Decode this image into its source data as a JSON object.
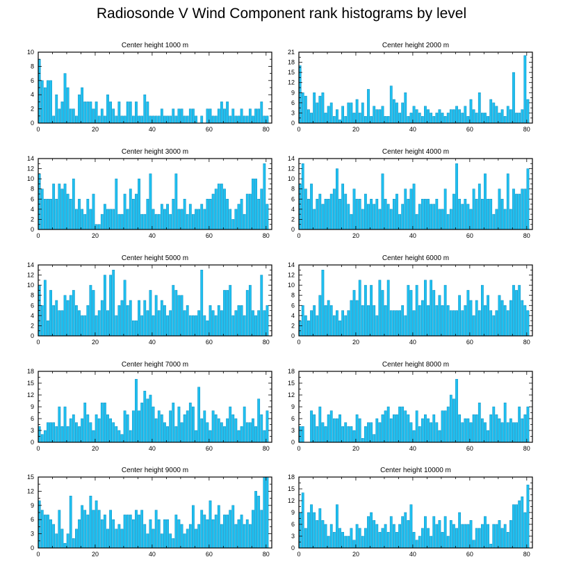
{
  "title": "Radiosonde V Wind Component rank histograms by level",
  "colors": {
    "bar_fill": "#1fc0f0",
    "bar_edge": "#0a8cc0",
    "axis": "#000000"
  },
  "chart_data": [
    {
      "type": "bar",
      "title": "Center height 1000 m",
      "xlim": [
        0,
        82
      ],
      "ylim": [
        0,
        10
      ],
      "xticks": [
        0,
        20,
        40,
        60,
        80
      ],
      "yticks": [
        0,
        2,
        4,
        6,
        8,
        10
      ],
      "values": [
        9,
        6,
        5,
        6,
        6,
        1,
        4,
        2,
        3,
        7,
        5,
        2,
        2,
        1,
        4,
        5,
        3,
        3,
        3,
        2,
        3,
        1,
        2,
        1,
        4,
        3,
        2,
        1,
        3,
        1,
        1,
        3,
        3,
        1,
        3,
        1,
        1,
        4,
        3,
        1,
        1,
        1,
        1,
        2,
        1,
        1,
        1,
        2,
        1,
        2,
        2,
        1,
        1,
        2,
        2,
        1,
        0,
        1,
        0,
        2,
        2,
        1,
        1,
        2,
        3,
        2,
        3,
        1,
        2,
        1,
        1,
        2,
        1,
        1,
        2,
        1,
        2,
        2,
        3,
        1,
        1
      ]
    },
    {
      "type": "bar",
      "title": "Center height 2000 m",
      "xlim": [
        0,
        82
      ],
      "ylim": [
        0,
        21
      ],
      "xticks": [
        0,
        20,
        40,
        60,
        80
      ],
      "yticks": [
        0,
        3,
        6,
        9,
        12,
        15,
        18,
        21
      ],
      "values": [
        17,
        9,
        8,
        4,
        3,
        9,
        6,
        8,
        9,
        3,
        5,
        6,
        2,
        4,
        1,
        5,
        2,
        6,
        6,
        3,
        7,
        3,
        6,
        2,
        10,
        2,
        5,
        4,
        4,
        5,
        2,
        2,
        11,
        7,
        6,
        3,
        6,
        9,
        2,
        3,
        5,
        4,
        3,
        2,
        5,
        4,
        3,
        2,
        3,
        4,
        3,
        2,
        3,
        4,
        4,
        5,
        4,
        3,
        5,
        2,
        7,
        4,
        3,
        9,
        3,
        3,
        2,
        7,
        6,
        5,
        3,
        4,
        2,
        5,
        4,
        15,
        3,
        3,
        4,
        20,
        7
      ]
    },
    {
      "type": "bar",
      "title": "Center height 3000 m",
      "xlim": [
        0,
        82
      ],
      "ylim": [
        0,
        14
      ],
      "xticks": [
        0,
        20,
        40,
        60,
        80
      ],
      "yticks": [
        0,
        2,
        4,
        6,
        8,
        10,
        12,
        14
      ],
      "values": [
        11,
        8,
        6,
        6,
        6,
        9,
        6,
        9,
        8,
        9,
        7,
        6,
        10,
        4,
        6,
        4,
        3,
        6,
        4,
        7,
        1,
        1,
        3,
        5,
        4,
        4,
        4,
        10,
        3,
        3,
        7,
        4,
        8,
        6,
        7,
        10,
        3,
        3,
        6,
        11,
        4,
        3,
        3,
        5,
        4,
        5,
        3,
        6,
        11,
        4,
        4,
        6,
        3,
        5,
        3,
        4,
        4,
        5,
        4,
        6,
        6,
        7,
        8,
        9,
        9,
        8,
        6,
        4,
        2,
        4,
        5,
        6,
        3,
        7,
        7,
        10,
        10,
        6,
        8,
        13,
        5
      ]
    },
    {
      "type": "bar",
      "title": "Center height 4000 m",
      "xlim": [
        0,
        82
      ],
      "ylim": [
        0,
        14
      ],
      "xticks": [
        0,
        20,
        40,
        60,
        80
      ],
      "yticks": [
        0,
        2,
        4,
        6,
        8,
        10,
        12,
        14
      ],
      "values": [
        9,
        13,
        8,
        6,
        9,
        4,
        6,
        7,
        5,
        6,
        6,
        7,
        8,
        12,
        6,
        9,
        7,
        5,
        3,
        8,
        6,
        6,
        4,
        7,
        5,
        6,
        5,
        6,
        4,
        11,
        6,
        5,
        4,
        6,
        7,
        3,
        5,
        8,
        6,
        8,
        9,
        3,
        5,
        6,
        6,
        6,
        5,
        5,
        6,
        4,
        4,
        8,
        3,
        4,
        7,
        13,
        6,
        5,
        6,
        5,
        4,
        8,
        6,
        9,
        6,
        11,
        6,
        6,
        3,
        4,
        8,
        6,
        4,
        11,
        4,
        8,
        7,
        7,
        8,
        8,
        12
      ]
    },
    {
      "type": "bar",
      "title": "Center height 5000 m",
      "xlim": [
        0,
        82
      ],
      "ylim": [
        0,
        14
      ],
      "xticks": [
        0,
        20,
        40,
        60,
        80
      ],
      "yticks": [
        0,
        2,
        4,
        6,
        8,
        10,
        12,
        14
      ],
      "values": [
        10,
        6,
        11,
        3,
        9,
        6,
        7,
        5,
        5,
        8,
        7,
        8,
        9,
        6,
        5,
        4,
        4,
        6,
        10,
        9,
        4,
        5,
        7,
        12,
        5,
        12,
        13,
        4,
        6,
        7,
        11,
        6,
        7,
        3,
        3,
        7,
        4,
        7,
        5,
        9,
        4,
        8,
        5,
        7,
        6,
        4,
        5,
        10,
        9,
        8,
        8,
        5,
        6,
        4,
        4,
        4,
        5,
        13,
        4,
        3,
        6,
        5,
        4,
        6,
        5,
        9,
        9,
        10,
        4,
        5,
        6,
        6,
        4,
        9,
        10,
        5,
        4,
        5,
        12,
        5,
        6
      ]
    },
    {
      "type": "bar",
      "title": "Center height 6000 m",
      "xlim": [
        0,
        82
      ],
      "ylim": [
        0,
        14
      ],
      "xticks": [
        0,
        20,
        40,
        60,
        80
      ],
      "yticks": [
        0,
        2,
        4,
        6,
        8,
        10,
        12,
        14
      ],
      "values": [
        3,
        6,
        4,
        3,
        5,
        6,
        4,
        8,
        13,
        6,
        7,
        6,
        4,
        5,
        3,
        5,
        4,
        5,
        7,
        9,
        7,
        11,
        6,
        10,
        6,
        10,
        6,
        4,
        11,
        9,
        6,
        11,
        5,
        5,
        5,
        5,
        6,
        4,
        10,
        9,
        5,
        10,
        6,
        7,
        11,
        6,
        11,
        9,
        6,
        8,
        6,
        10,
        6,
        5,
        5,
        5,
        8,
        5,
        6,
        9,
        7,
        4,
        7,
        5,
        10,
        6,
        8,
        5,
        4,
        5,
        8,
        7,
        6,
        5,
        7,
        10,
        9,
        10,
        7,
        6,
        5
      ]
    },
    {
      "type": "bar",
      "title": "Center height 7000 m",
      "xlim": [
        0,
        82
      ],
      "ylim": [
        0,
        18
      ],
      "xticks": [
        0,
        20,
        40,
        60,
        80
      ],
      "yticks": [
        0,
        3,
        6,
        9,
        12,
        15,
        18
      ],
      "values": [
        4,
        2,
        3,
        5,
        5,
        5,
        4,
        9,
        4,
        9,
        4,
        6,
        7,
        5,
        4,
        6,
        10,
        7,
        5,
        3,
        7,
        6,
        10,
        10,
        7,
        6,
        5,
        4,
        3,
        2,
        8,
        7,
        3,
        8,
        16,
        8,
        10,
        13,
        11,
        12,
        9,
        6,
        8,
        7,
        5,
        4,
        8,
        10,
        4,
        9,
        5,
        7,
        8,
        10,
        9,
        3,
        14,
        6,
        8,
        5,
        3,
        8,
        7,
        6,
        5,
        4,
        6,
        9,
        7,
        6,
        3,
        4,
        9,
        5,
        5,
        6,
        4,
        11,
        7,
        3,
        8
      ]
    },
    {
      "type": "bar",
      "title": "Center height 8000 m",
      "xlim": [
        0,
        82
      ],
      "ylim": [
        0,
        18
      ],
      "xticks": [
        0,
        20,
        40,
        60,
        80
      ],
      "yticks": [
        0,
        3,
        6,
        9,
        12,
        15,
        18
      ],
      "values": [
        4,
        4,
        0,
        0,
        8,
        7,
        4,
        9,
        5,
        4,
        7,
        8,
        6,
        6,
        7,
        4,
        5,
        4,
        4,
        3,
        7,
        6,
        1,
        4,
        5,
        5,
        2,
        6,
        5,
        7,
        8,
        9,
        6,
        7,
        7,
        9,
        9,
        8,
        7,
        5,
        3,
        8,
        4,
        6,
        7,
        6,
        5,
        7,
        5,
        3,
        8,
        8,
        9,
        12,
        11,
        16,
        7,
        5,
        6,
        6,
        5,
        7,
        7,
        10,
        6,
        5,
        3,
        7,
        9,
        7,
        6,
        5,
        10,
        5,
        6,
        5,
        5,
        9,
        6,
        7,
        9
      ]
    },
    {
      "type": "bar",
      "title": "Center height 9000 m",
      "xlim": [
        0,
        82
      ],
      "ylim": [
        0,
        15
      ],
      "xticks": [
        0,
        20,
        40,
        60,
        80
      ],
      "yticks": [
        0,
        3,
        6,
        9,
        12,
        15
      ],
      "values": [
        10,
        8,
        7,
        7,
        6,
        5,
        3,
        8,
        4,
        1,
        3,
        11,
        2,
        4,
        6,
        9,
        8,
        7,
        11,
        8,
        10,
        8,
        6,
        7,
        4,
        8,
        6,
        4,
        5,
        4,
        7,
        7,
        7,
        6,
        8,
        7,
        8,
        5,
        3,
        6,
        4,
        8,
        6,
        3,
        6,
        6,
        3,
        2,
        7,
        6,
        5,
        3,
        4,
        5,
        9,
        4,
        5,
        8,
        7,
        6,
        10,
        6,
        7,
        9,
        5,
        7,
        7,
        8,
        9,
        5,
        6,
        7,
        5,
        6,
        5,
        8,
        12,
        11,
        8,
        15,
        15
      ]
    },
    {
      "type": "bar",
      "title": "Center height 10000 m",
      "xlim": [
        0,
        82
      ],
      "ylim": [
        0,
        18
      ],
      "xticks": [
        0,
        20,
        40,
        60,
        80
      ],
      "yticks": [
        0,
        3,
        6,
        9,
        12,
        15,
        18
      ],
      "values": [
        9,
        14,
        5,
        9,
        11,
        9,
        7,
        10,
        7,
        6,
        3,
        6,
        4,
        11,
        5,
        4,
        3,
        3,
        5,
        2,
        6,
        5,
        3,
        5,
        8,
        9,
        7,
        6,
        4,
        5,
        6,
        4,
        8,
        6,
        4,
        6,
        8,
        9,
        7,
        11,
        4,
        2,
        3,
        5,
        8,
        5,
        3,
        8,
        6,
        7,
        4,
        8,
        3,
        7,
        6,
        5,
        9,
        6,
        6,
        6,
        7,
        2,
        5,
        5,
        6,
        8,
        6,
        1,
        6,
        6,
        7,
        5,
        6,
        4,
        7,
        11,
        11,
        12,
        13,
        9,
        16
      ]
    }
  ]
}
